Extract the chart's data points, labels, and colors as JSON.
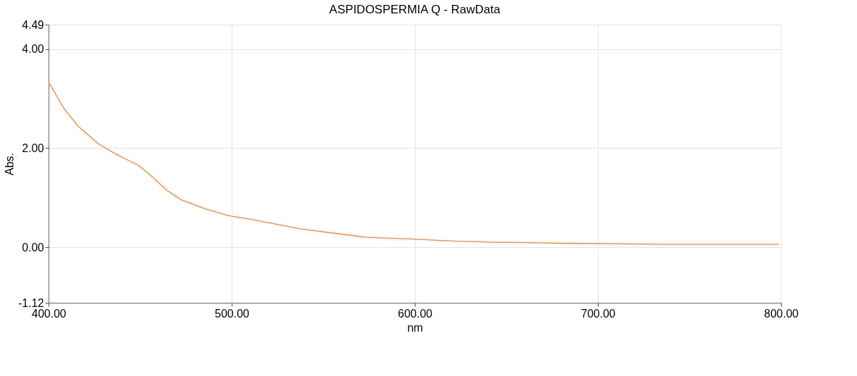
{
  "chart_data": {
    "type": "line",
    "title": "ASPIDOSPERMIA Q - RawData",
    "xlabel": "nm",
    "ylabel": "Abs.",
    "x": [
      400,
      408.2,
      415.9,
      427.4,
      437.7,
      449.2,
      456.9,
      464.6,
      472.3,
      485.1,
      498,
      510.8,
      537.7,
      573.6,
      595.4,
      623.6,
      645,
      653.1,
      679,
      735.8,
      799
    ],
    "series": [
      {
        "color": "#ff7f27",
        "values": [
          3.33,
          2.81,
          2.45,
          2.08,
          1.86,
          1.65,
          1.41,
          1.15,
          0.96,
          0.78,
          0.64,
          0.56,
          0.37,
          0.2,
          0.17,
          0.12,
          0.1,
          0.1,
          0.08,
          0.06,
          0.06
        ]
      }
    ],
    "xlim": [
      400,
      800
    ],
    "ylim": [
      -1.12,
      4.49
    ],
    "xticks": [
      {
        "value": 400,
        "label": "400.00"
      },
      {
        "value": 500,
        "label": "500.00"
      },
      {
        "value": 600,
        "label": "600.00"
      },
      {
        "value": 700,
        "label": "700.00"
      },
      {
        "value": 800,
        "label": "800.00"
      }
    ],
    "yticks": [
      -1.12,
      {
        "value": 0,
        "label": "0.00"
      },
      {
        "value": 2,
        "label": "2.00"
      },
      {
        "value": 4,
        "label": "4.00"
      },
      4.49
    ],
    "grid": true,
    "line_style": "solid",
    "marker": "none"
  }
}
